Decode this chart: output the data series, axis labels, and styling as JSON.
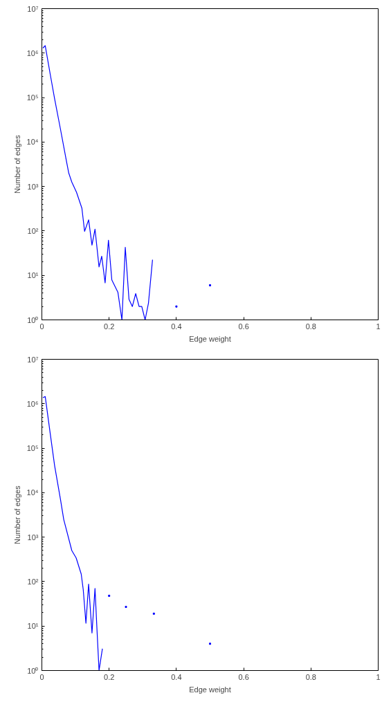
{
  "chart_data": [
    {
      "type": "line",
      "xlabel": "Edge weight",
      "ylabel": "Number of edges",
      "log": "y",
      "grid": false,
      "marker": "none",
      "line_style": "solid",
      "xlim": [
        0,
        1
      ],
      "xticks": [
        0,
        0.2,
        0.4,
        0.6,
        0.8,
        1
      ],
      "ylim": [
        1,
        10000000
      ],
      "yticks": [
        {
          "value": 1,
          "label": "10⁰"
        },
        {
          "value": 10,
          "label": "10¹"
        },
        {
          "value": 100,
          "label": "10²"
        },
        {
          "value": 1000,
          "label": "10³"
        },
        {
          "value": 10000,
          "label": "10⁴"
        },
        {
          "value": 100000,
          "label": "10⁵"
        },
        {
          "value": 1000000,
          "label": "10⁶"
        },
        {
          "value": 10000000,
          "label": "10⁷"
        }
      ],
      "series": [
        {
          "color": "#0000ff",
          "x": [
            0.003,
            0.01,
            0.025,
            0.038,
            0.055,
            0.074,
            0.08,
            0.089,
            0.103,
            0.119,
            0.127,
            0.139,
            0.149,
            0.158,
            0.17,
            0.178,
            0.188,
            0.198,
            0.208,
            0.226,
            0.238,
            0.248,
            0.259,
            0.269,
            0.279,
            0.289,
            0.297,
            0.307,
            0.317,
            0.329,
            0.36,
            0.4,
            0.45,
            0.5
          ],
          "values": [
            1300000,
            1470000,
            330000,
            93000,
            20000,
            3400,
            2000,
            1260,
            740,
            325,
            98,
            178,
            48,
            110,
            15.5,
            27,
            6.8,
            62,
            7.9,
            4.2,
            1,
            43,
            2.9,
            2,
            3.9,
            2,
            2,
            1,
            2.4,
            22.6,
            null,
            2,
            null,
            6
          ]
        }
      ]
    },
    {
      "type": "line",
      "xlabel": "Edge weight",
      "ylabel": "Number of edges",
      "log": "y",
      "grid": false,
      "marker": "none",
      "line_style": "solid",
      "xlim": [
        0,
        1
      ],
      "xticks": [
        0,
        0.2,
        0.4,
        0.6,
        0.8,
        1
      ],
      "ylim": [
        1,
        10000000
      ],
      "yticks": [
        {
          "value": 1,
          "label": "10⁰"
        },
        {
          "value": 10,
          "label": "10¹"
        },
        {
          "value": 100,
          "label": "10²"
        },
        {
          "value": 1000,
          "label": "10³"
        },
        {
          "value": 10000,
          "label": "10⁴"
        },
        {
          "value": 100000,
          "label": "10⁵"
        },
        {
          "value": 1000000,
          "label": "10⁶"
        },
        {
          "value": 10000000,
          "label": "10⁷"
        }
      ],
      "series": [
        {
          "color": "#0000ff",
          "x": [
            0.003,
            0.01,
            0.025,
            0.038,
            0.055,
            0.065,
            0.089,
            0.102,
            0.117,
            0.123,
            0.131,
            0.139,
            0.149,
            0.158,
            0.164,
            0.17,
            0.18,
            0.19,
            0.2,
            0.225,
            0.25,
            0.29,
            0.333,
            0.4,
            0.5
          ],
          "values": [
            1370000,
            1450000,
            210000,
            40000,
            7300,
            2500,
            500,
            340,
            148,
            66,
            11.6,
            88,
            7,
            70,
            8,
            1,
            3.1,
            null,
            48,
            null,
            27,
            null,
            19,
            null,
            4
          ]
        }
      ]
    }
  ]
}
